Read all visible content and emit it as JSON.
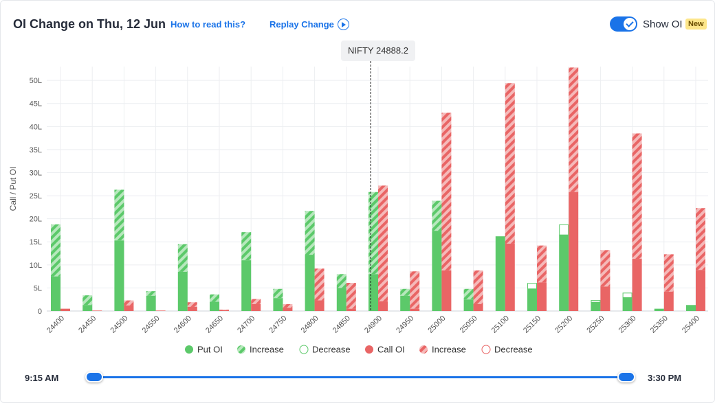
{
  "header": {
    "title": "OI Change on Thu, 12 Jun",
    "how_to_read": "How to read this?",
    "replay": "Replay Change",
    "show_oi": "Show OI",
    "new_badge": "New"
  },
  "spot_label": "NIFTY 24888.2",
  "time_range": {
    "start": "9:15 AM",
    "end": "3:30 PM",
    "selected_fraction": [
      0,
      1
    ]
  },
  "colors": {
    "put": "#5cc96a",
    "put_increase_stripe": "#b7e8bd",
    "call": "#e96565",
    "call_increase_stripe": "#f5b9b9",
    "accent": "#1a73e8"
  },
  "chart_data": {
    "type": "bar",
    "ylabel": "Call / Put OI",
    "ylim": [
      0,
      53
    ],
    "yticks": [
      "0",
      "5L",
      "10L",
      "15L",
      "20L",
      "25L",
      "30L",
      "35L",
      "40L",
      "45L",
      "50L"
    ],
    "categories": [
      "24400",
      "24450",
      "24500",
      "24550",
      "24600",
      "24650",
      "24700",
      "24750",
      "24800",
      "24850",
      "24900",
      "24950",
      "25000",
      "25050",
      "25100",
      "25150",
      "25200",
      "25250",
      "25300",
      "25350",
      "25400"
    ],
    "spot_value": 24888.2,
    "legend": [
      {
        "key": "put",
        "label": "Put OI"
      },
      {
        "key": "put_increase",
        "label": "Increase"
      },
      {
        "key": "put_decrease",
        "label": "Decrease"
      },
      {
        "key": "call",
        "label": "Call OI"
      },
      {
        "key": "call_increase",
        "label": "Increase"
      },
      {
        "key": "call_decrease",
        "label": "Decrease"
      }
    ],
    "series": [
      {
        "key": "put_oi",
        "values": [
          7.5,
          1.3,
          15.3,
          3.3,
          8.5,
          2.0,
          11.0,
          2.8,
          12.2,
          5.0,
          8.0,
          3.3,
          17.4,
          2.5,
          16.2,
          4.8,
          16.5,
          1.9,
          2.9,
          0.5,
          1.3
        ]
      },
      {
        "key": "put_increase",
        "values": [
          11.3,
          2.1,
          11.0,
          1.0,
          6.0,
          1.6,
          6.1,
          2.0,
          9.5,
          3.0,
          17.8,
          1.5,
          6.5,
          2.3,
          0,
          0,
          0,
          0,
          0,
          0,
          0
        ]
      },
      {
        "key": "put_decrease",
        "values": [
          0,
          0,
          0,
          0,
          0,
          0,
          0,
          0,
          0,
          0,
          0,
          0,
          0,
          0,
          0,
          1.2,
          2.2,
          0.4,
          1.0,
          0,
          0
        ]
      },
      {
        "key": "call_oi",
        "values": [
          0.5,
          0.1,
          1.2,
          0.1,
          0.9,
          0.2,
          1.5,
          0.7,
          2.3,
          0.5,
          2.1,
          0.5,
          8.8,
          1.5,
          14.6,
          6.2,
          25.8,
          5.3,
          11.3,
          4.2,
          8.9
        ]
      },
      {
        "key": "call_increase",
        "values": [
          0,
          0,
          1.1,
          0,
          1.0,
          0.1,
          1.1,
          0.8,
          6.9,
          5.6,
          25.1,
          8.1,
          34.2,
          7.3,
          34.8,
          8.0,
          27.0,
          7.9,
          27.2,
          8.1,
          13.4
        ]
      },
      {
        "key": "call_decrease",
        "values": [
          0,
          0,
          0,
          0,
          0,
          0,
          0,
          0,
          0,
          0,
          0,
          0,
          0,
          0,
          0,
          0,
          0,
          0,
          0,
          0,
          0
        ]
      }
    ]
  }
}
